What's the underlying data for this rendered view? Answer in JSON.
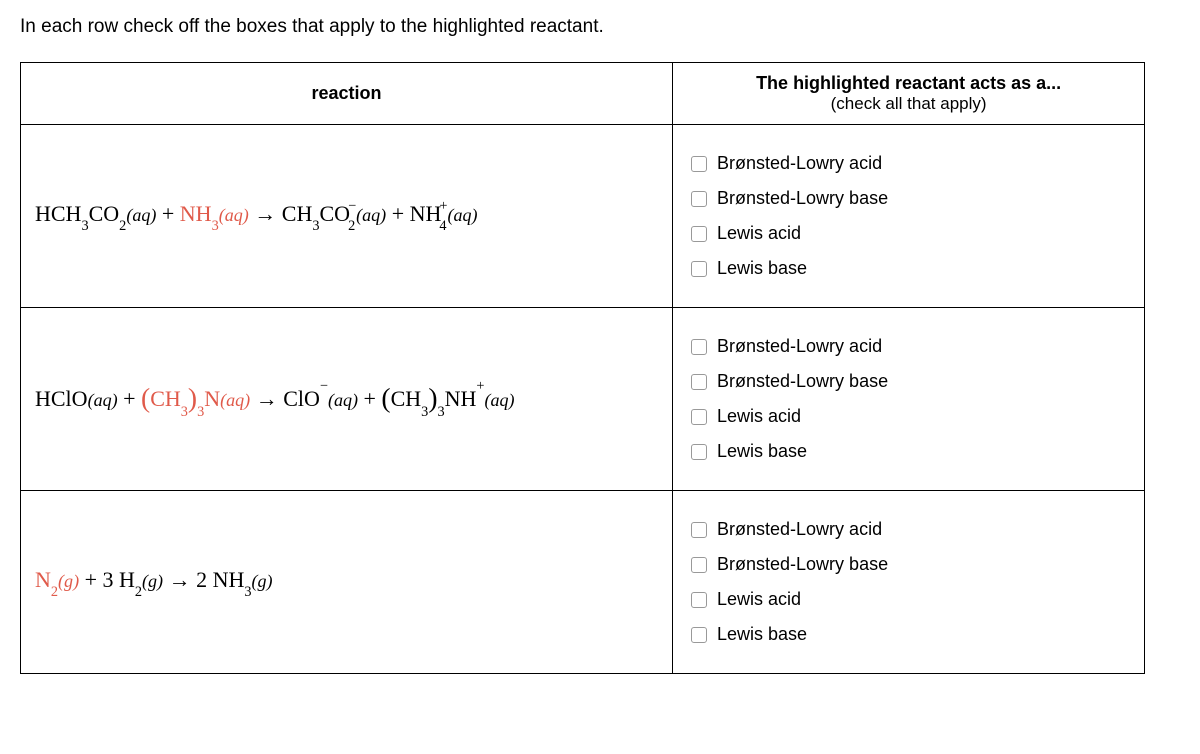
{
  "instruction": "In each row check off the boxes that apply to the highlighted reactant.",
  "headers": {
    "reaction": "reaction",
    "acts_line1": "The highlighted reactant acts as a...",
    "acts_line2": "(check all that apply)"
  },
  "options": {
    "bl_acid": "Brønsted-Lowry acid",
    "bl_base": "Brønsted-Lowry base",
    "lewis_acid": "Lewis acid",
    "lewis_base": "Lewis base"
  },
  "colors": {
    "highlight": "#e05a4a",
    "border": "#000000",
    "text": "#000000",
    "checkbox_border": "#999999"
  }
}
